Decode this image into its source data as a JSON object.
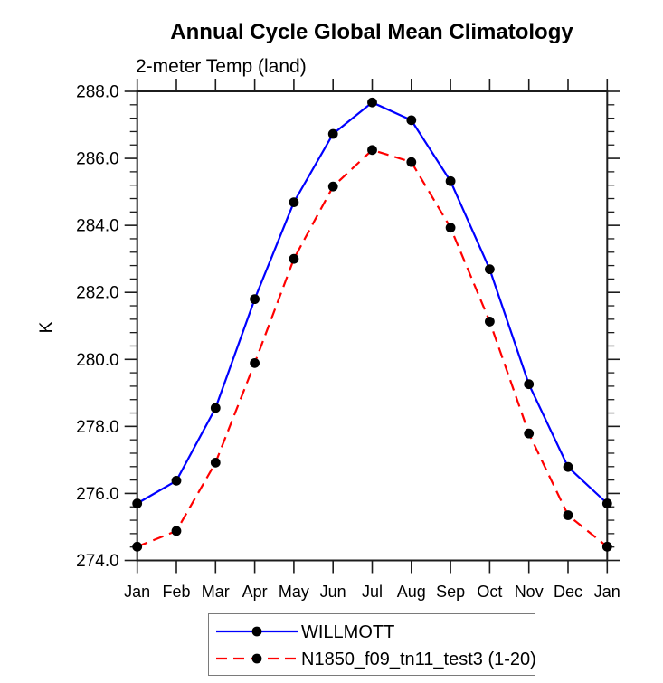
{
  "chart_data": {
    "type": "line",
    "title": "Annual Cycle Global Mean Climatology",
    "subtitle": "2-meter Temp (land)",
    "ylabel": "K",
    "xlabel": "",
    "categories": [
      "Jan",
      "Feb",
      "Mar",
      "Apr",
      "May",
      "Jun",
      "Jul",
      "Aug",
      "Sep",
      "Oct",
      "Nov",
      "Dec",
      "Jan"
    ],
    "ylim": [
      274.0,
      288.0
    ],
    "y_major_step": 2.0,
    "y_minor_step": 0.4,
    "grid": false,
    "legend_position": "bottom-center",
    "series": [
      {
        "name": "WILLMOTT",
        "color": "#0000ff",
        "line_style": "solid",
        "marker": "filled-circle",
        "marker_color": "#000000",
        "values": [
          275.7,
          276.38,
          278.55,
          281.8,
          284.69,
          286.73,
          287.67,
          287.14,
          285.32,
          282.69,
          279.26,
          276.79,
          275.7
        ]
      },
      {
        "name": "N1850_f09_tn11_test3 (1-20)",
        "color": "#ff0000",
        "line_style": "dashed",
        "marker": "filled-circle",
        "marker_color": "#000000",
        "values": [
          274.41,
          274.88,
          276.92,
          279.89,
          283.0,
          285.16,
          286.25,
          285.89,
          283.93,
          281.13,
          277.79,
          275.35,
          274.41
        ]
      }
    ]
  },
  "colors": {
    "axis": "#1c1c1c",
    "series_blue": "#0000ff",
    "series_red": "#ff0000",
    "marker": "#000000",
    "legend_border": "#7a7a7a",
    "background": "#ffffff"
  }
}
